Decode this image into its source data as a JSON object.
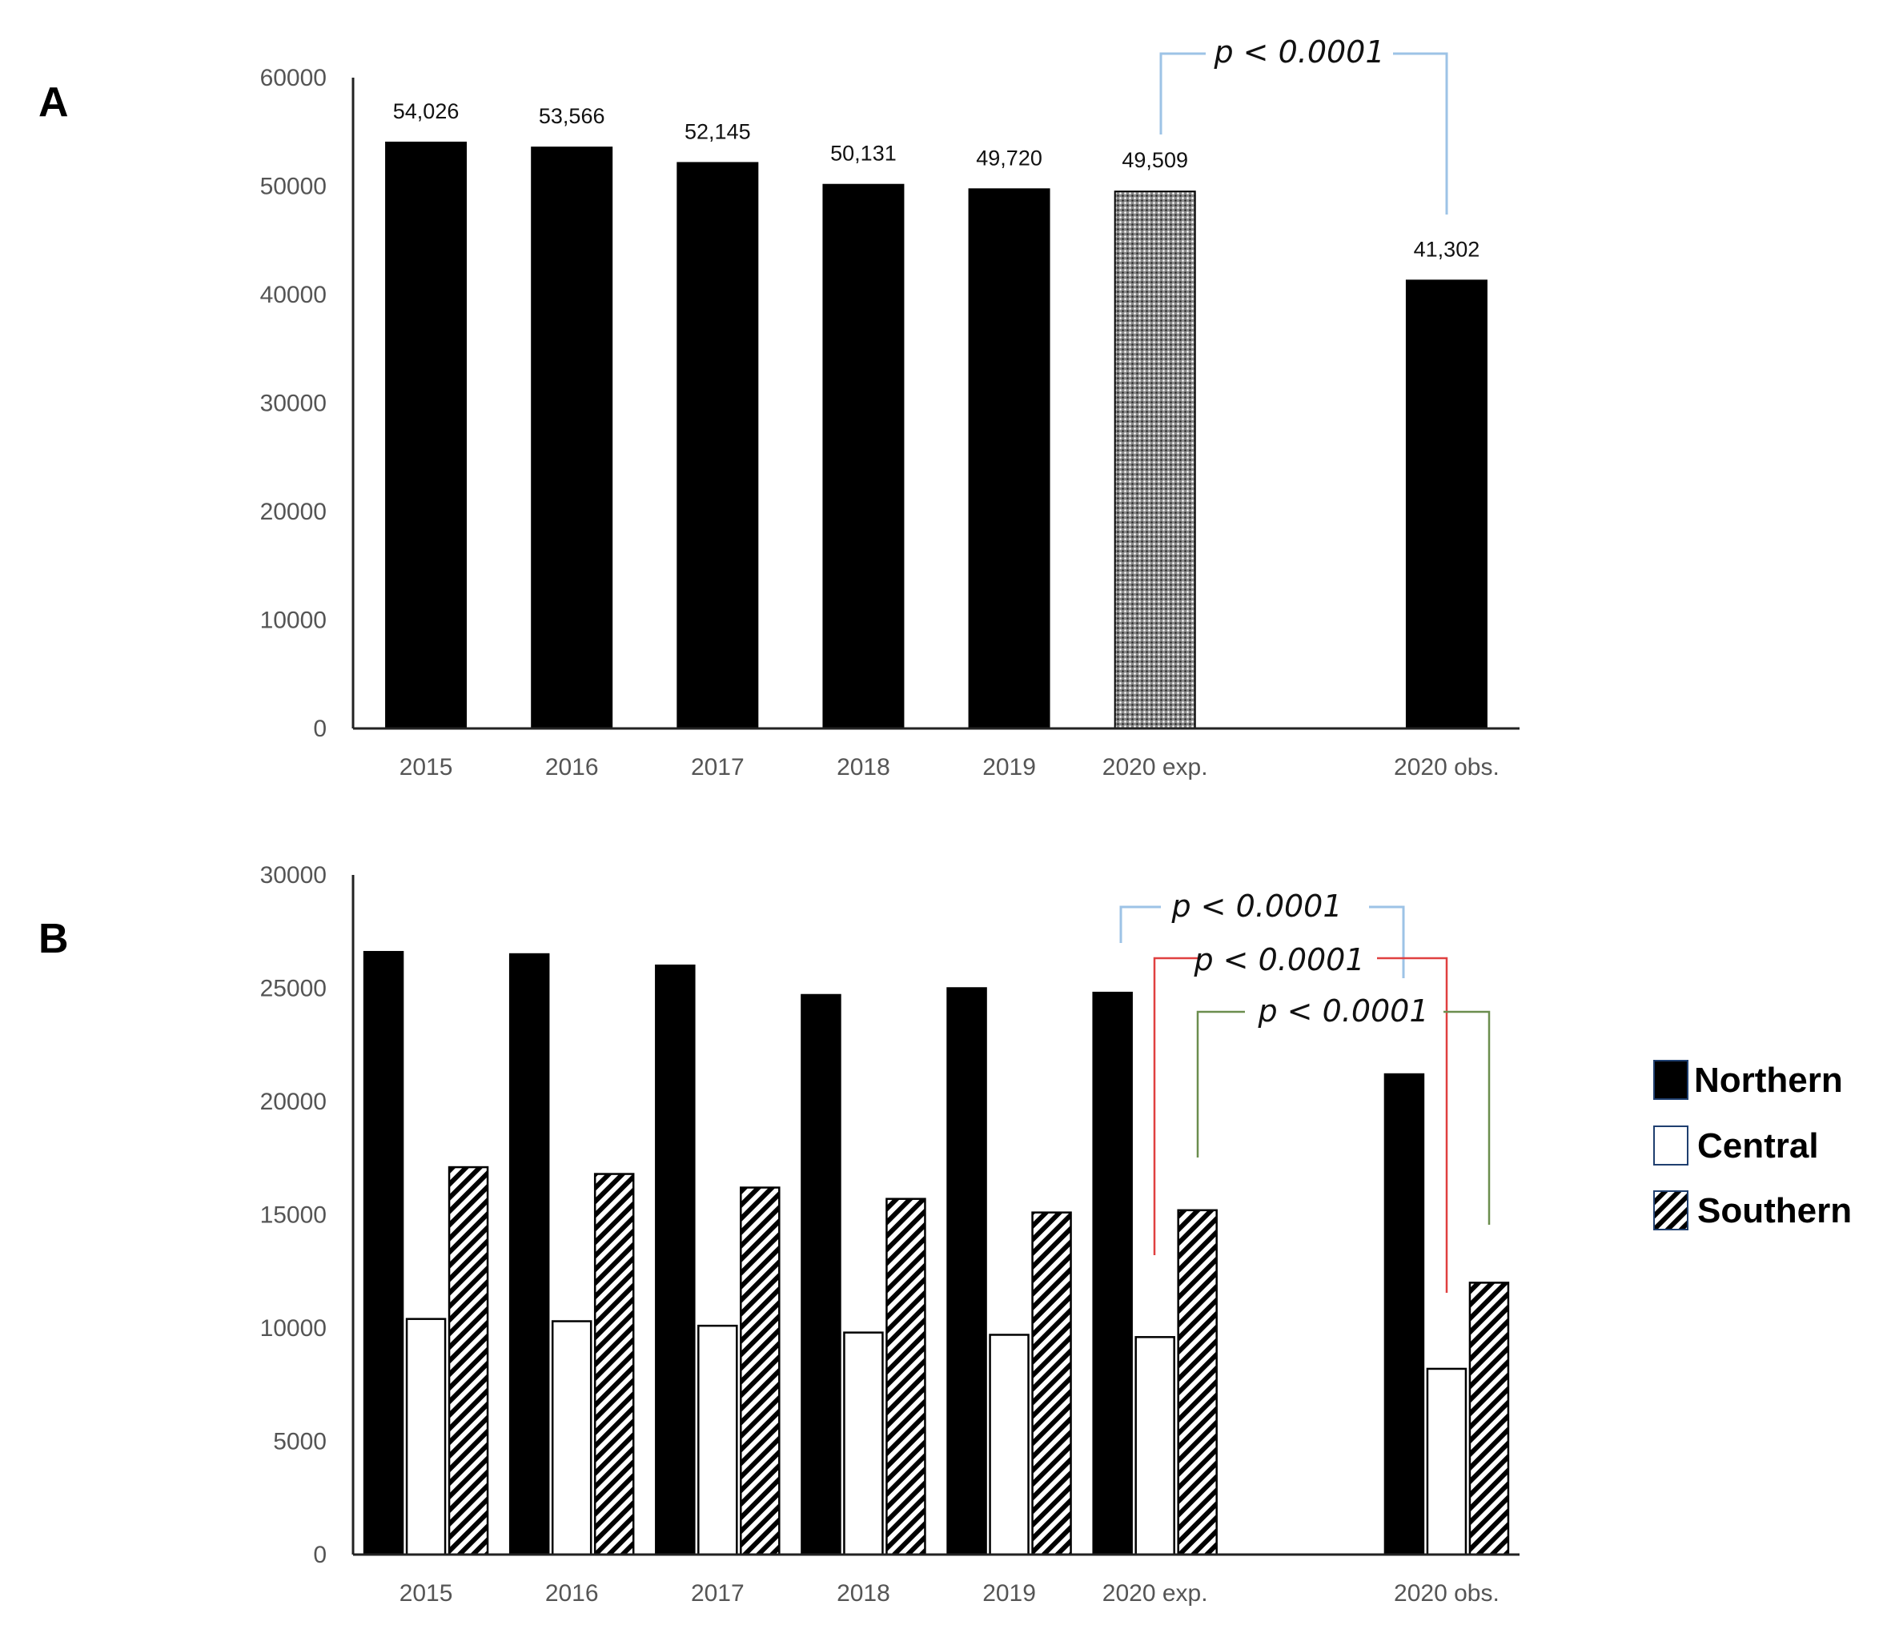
{
  "chart_data": [
    {
      "panel_label": "A",
      "type": "bar",
      "categories": [
        "2015",
        "2016",
        "2017",
        "2018",
        "2019",
        "2020 exp.",
        "",
        "2020 obs."
      ],
      "values": [
        54026,
        53566,
        52145,
        50131,
        49720,
        49509,
        null,
        41302
      ],
      "value_labels": [
        "54,026",
        "53,566",
        "52,145",
        "50,131",
        "49,720",
        "49,509",
        "",
        "41,302"
      ],
      "fills": [
        "solid",
        "solid",
        "solid",
        "solid",
        "solid",
        "dotted",
        "",
        "solid"
      ],
      "yticks": [
        "0",
        "10000",
        "20000",
        "30000",
        "40000",
        "50000",
        "60000"
      ],
      "ylim": [
        0,
        60000
      ],
      "xlabel": "",
      "ylabel": "",
      "annotations": [
        {
          "text": "p < 0.0001",
          "from": "2020 exp.",
          "to": "2020 obs.",
          "color": "#9dc3e6"
        }
      ]
    },
    {
      "panel_label": "B",
      "type": "bar",
      "categories": [
        "2015",
        "2016",
        "2017",
        "2018",
        "2019",
        "2020 exp.",
        "",
        "2020 obs."
      ],
      "series": [
        {
          "name": "Northern",
          "fill": "solid",
          "values": [
            26600,
            26500,
            26000,
            24700,
            25000,
            24800,
            null,
            21200
          ]
        },
        {
          "name": "Central",
          "fill": "white",
          "values": [
            10400,
            10300,
            10100,
            9800,
            9700,
            9600,
            null,
            8200
          ]
        },
        {
          "name": "Southern",
          "fill": "hatched",
          "values": [
            17100,
            16800,
            16200,
            15700,
            15100,
            15200,
            null,
            12000
          ]
        }
      ],
      "yticks": [
        "0",
        "5000",
        "10000",
        "15000",
        "20000",
        "25000",
        "30000"
      ],
      "ylim": [
        0,
        30000
      ],
      "xlabel": "",
      "ylabel": "",
      "legend_position": "right",
      "annotations": [
        {
          "text": "p < 0.0001",
          "series": "Northern",
          "from": "2020 exp.",
          "to": "2020 obs.",
          "color": "#9dc3e6"
        },
        {
          "text": "p < 0.0001",
          "series": "Central",
          "from": "2020 exp.",
          "to": "2020 obs.",
          "color": "#e04040"
        },
        {
          "text": "p < 0.0001",
          "series": "Southern",
          "from": "2020 exp.",
          "to": "2020 obs.",
          "color": "#6b8e4e"
        }
      ]
    }
  ],
  "colors": {
    "bar_solid": "#000000",
    "axis": "#333333",
    "tick_text": "#555555"
  }
}
